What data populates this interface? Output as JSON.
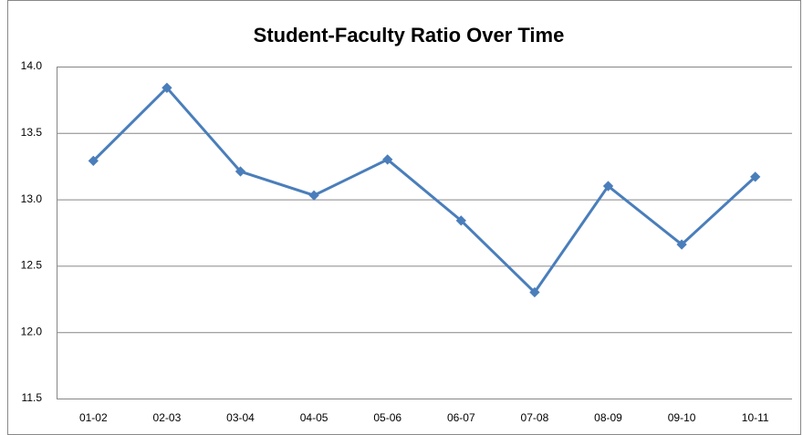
{
  "chart_data": {
    "type": "line",
    "title": "Student-Faculty Ratio Over Time",
    "categories": [
      "01-02",
      "02-03",
      "03-04",
      "04-05",
      "05-06",
      "06-07",
      "07-08",
      "08-09",
      "09-10",
      "10-11"
    ],
    "series": [
      {
        "name": "Student-Faculty Ratio",
        "color": "#4a7ebb",
        "values": [
          13.29,
          13.84,
          13.21,
          13.03,
          13.3,
          12.84,
          12.3,
          13.1,
          12.66,
          13.17
        ]
      }
    ],
    "ylim": [
      11.5,
      14.0
    ],
    "yticks": [
      11.5,
      {
        "value": 12.0,
        "label": "12.0"
      },
      12.5,
      {
        "value": 13.0,
        "label": "13.0"
      },
      13.5,
      {
        "value": 14.0,
        "label": "14.0"
      }
    ],
    "grid": true,
    "legend": false
  }
}
